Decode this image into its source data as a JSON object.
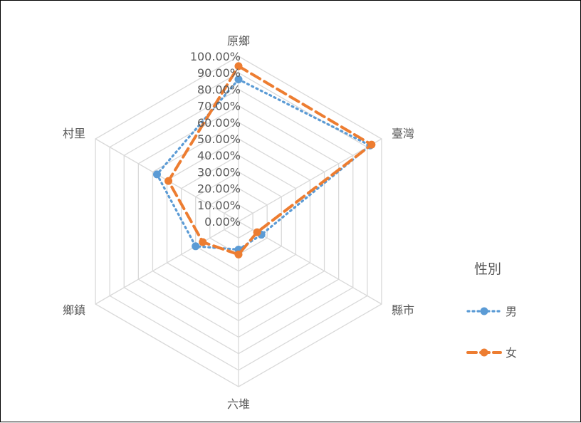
{
  "chart_data": {
    "type": "radar",
    "categories": [
      "原鄉",
      "臺灣",
      "縣市",
      "六堆",
      "鄉鎮",
      "村里"
    ],
    "ticks": [
      "0.00%",
      "10.00%",
      "20.00%",
      "30.00%",
      "40.00%",
      "50.00%",
      "60.00%",
      "70.00%",
      "80.00%",
      "90.00%",
      "100.00%"
    ],
    "rlim": [
      0,
      100
    ],
    "grid": true,
    "legend": {
      "title": "性別",
      "position": "right"
    },
    "series": [
      {
        "name": "男",
        "values": [
          86,
          92,
          16,
          17,
          30,
          57
        ],
        "color": "#5B9BD5",
        "line_style": "dotted"
      },
      {
        "name": "女",
        "values": [
          94,
          93,
          13,
          20,
          25,
          49
        ],
        "color": "#ED7D31",
        "line_style": "dashed"
      }
    ]
  }
}
